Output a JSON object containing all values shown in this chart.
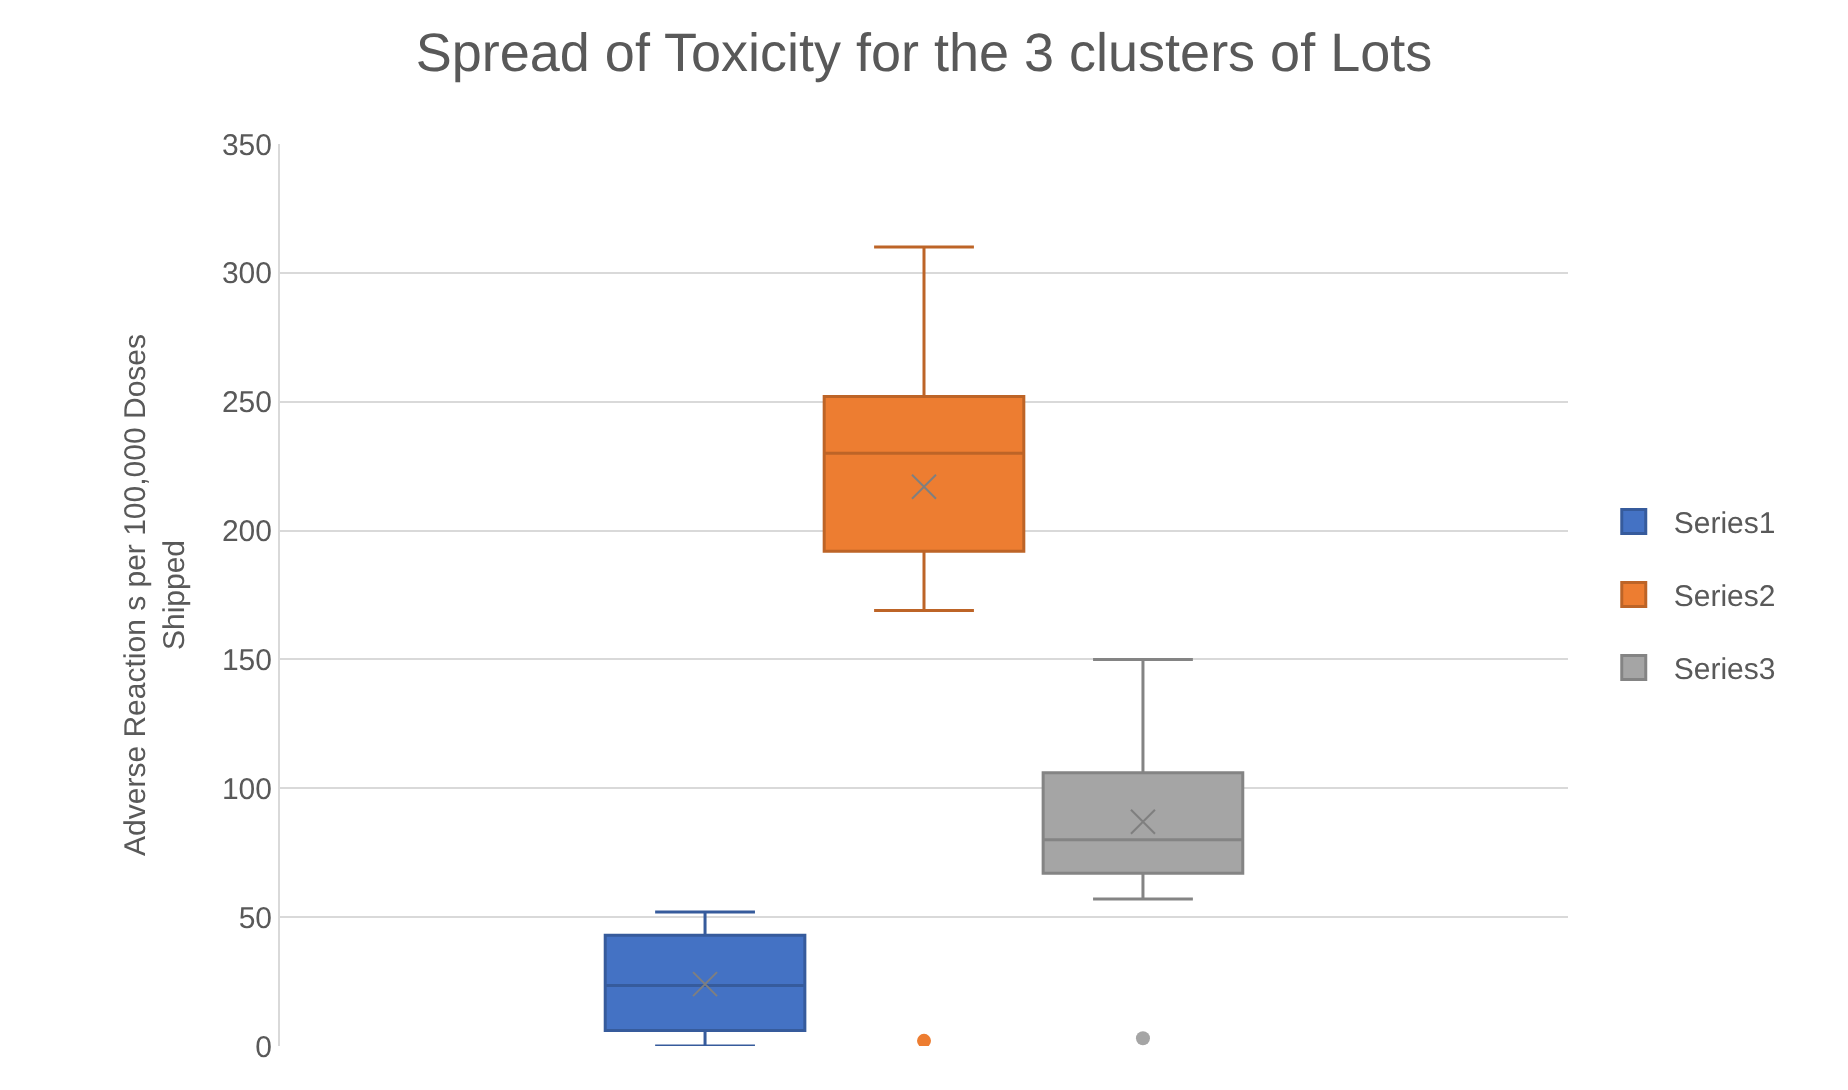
{
  "chart_data": {
    "type": "box",
    "title": "Spread of Toxicity for the 3 clusters of Lots",
    "ylabel": "Adverse Reaction s per 100,000 Doses Shipped",
    "categories": [
      null
    ],
    "ylim": [
      0,
      350
    ],
    "yticks": [
      0,
      50,
      100,
      150,
      200,
      250,
      300,
      350
    ],
    "grid": "y",
    "legend": "right",
    "marker": "circle",
    "series": [
      {
        "name": "Series1",
        "color": "#4472c4",
        "boxes": [
          {
            "low": 0,
            "q1": 6,
            "median": 23.5,
            "q3": 43,
            "high": 52,
            "mean": 24
          }
        ]
      },
      {
        "name": "Series2",
        "color": "#ed7d31",
        "boxes": [
          {
            "low": 169,
            "q1": 192,
            "median": 230,
            "q3": 252,
            "high": 310,
            "mean": 217,
            "outliers": [
              2
            ]
          }
        ]
      },
      {
        "name": "Series3",
        "color": "#a5a5a5",
        "boxes": [
          {
            "low": 57,
            "q1": 67,
            "median": 80,
            "q3": 106,
            "high": 150,
            "mean": 87,
            "outliers": [
              3
            ]
          }
        ]
      }
    ]
  }
}
